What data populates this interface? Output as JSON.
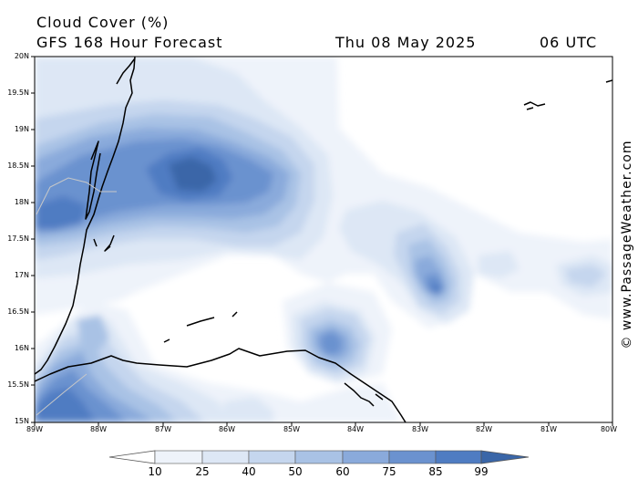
{
  "header": {
    "title": "Cloud Cover (%)",
    "subtitle": "GFS 168 Hour Forecast",
    "date": "Thu 08 May 2025",
    "time": "06 UTC"
  },
  "axes": {
    "lat_labels": [
      "20N",
      "19.5N",
      "19N",
      "18.5N",
      "18N",
      "17.5N",
      "17N",
      "16.5N",
      "16N",
      "15.5N",
      "15N"
    ],
    "lon_labels": [
      "89W",
      "88W",
      "87W",
      "86W",
      "85W",
      "84W",
      "83W",
      "82W",
      "81W",
      "80W"
    ]
  },
  "credit": "© www.PassageWeather.com",
  "colorbar": {
    "levels": [
      "10",
      "25",
      "40",
      "50",
      "60",
      "75",
      "85",
      "99"
    ],
    "colors": [
      "#ffffff",
      "#eef3fa",
      "#dde7f5",
      "#c5d6ee",
      "#a9c2e5",
      "#8aaadb",
      "#6b92cf",
      "#4f7cc2",
      "#3a66a8"
    ]
  },
  "map_data": {
    "lon_range": [
      -89,
      -80
    ],
    "lat_range": [
      15,
      20
    ]
  }
}
